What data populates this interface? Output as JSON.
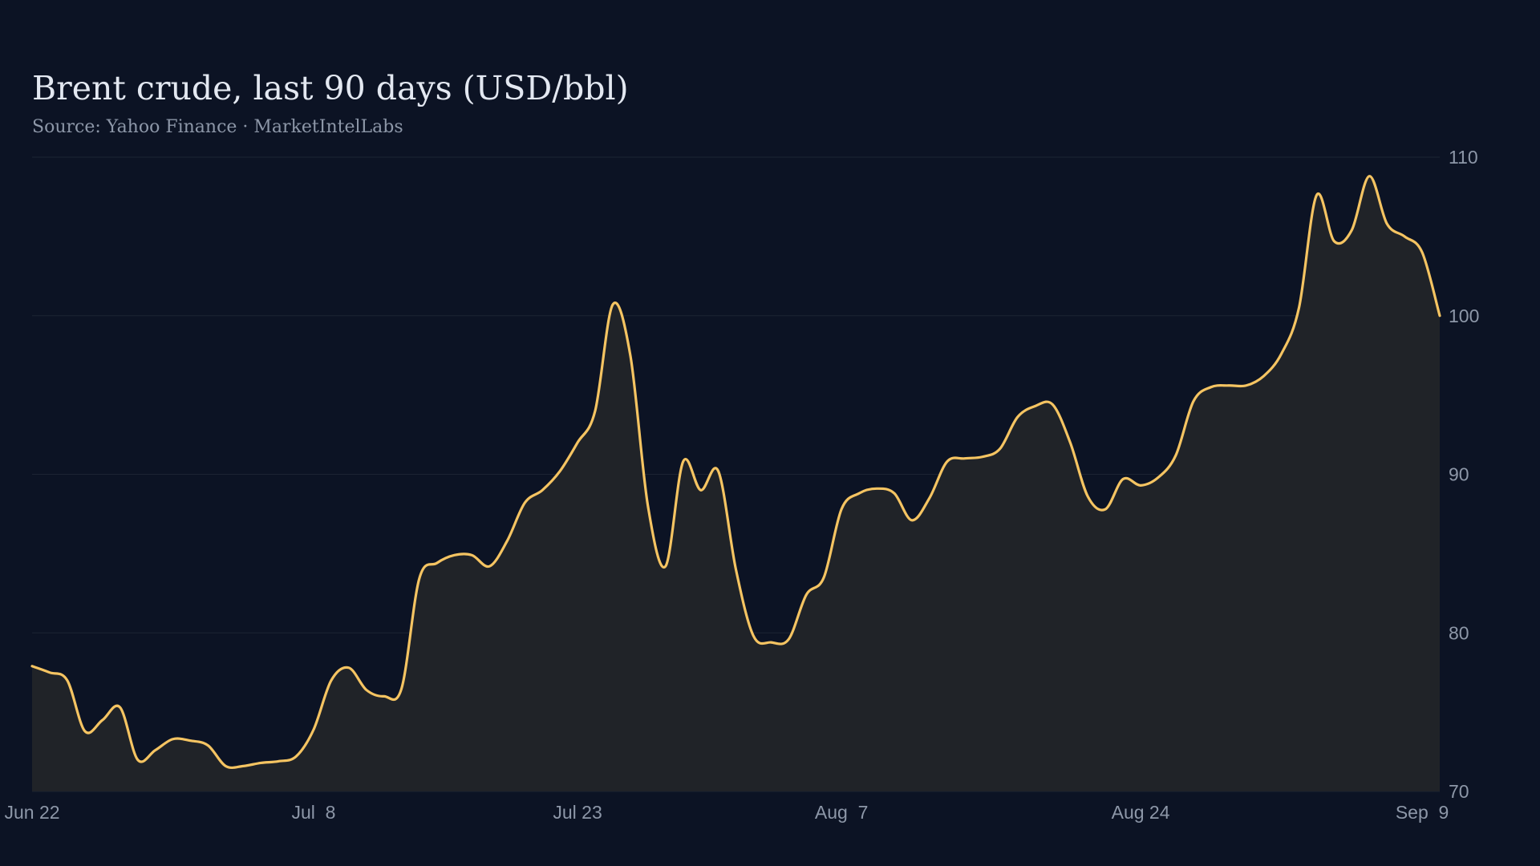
{
  "title": "Brent crude, last 90 days (USD/bbl)",
  "subtitle": "Source: Yahoo Finance · MarketIntelLabs",
  "colors": {
    "background": "#0c1324",
    "line": "#f5c462",
    "area": "#202328",
    "grid": "#1c2433",
    "text": "#8d97a8"
  },
  "chart_data": {
    "type": "area",
    "title": "Brent crude, last 90 days (USD/bbl)",
    "subtitle": "Source: Yahoo Finance · MarketIntelLabs",
    "xlabel": "",
    "ylabel": "",
    "ylim": [
      70,
      110
    ],
    "y_ticks": [
      70,
      80,
      90,
      100,
      110
    ],
    "y_axis_position": "right",
    "grid": true,
    "legend": "none",
    "x_ticks": [
      {
        "date": "2024-06-22",
        "label": "Jun 22"
      },
      {
        "date": "2024-07-08",
        "label": "Jul  8"
      },
      {
        "date": "2024-07-23",
        "label": "Jul 23"
      },
      {
        "date": "2024-08-07",
        "label": "Aug  7"
      },
      {
        "date": "2024-08-24",
        "label": "Aug 24"
      },
      {
        "date": "2024-09-09",
        "label": "Sep  9"
      }
    ],
    "series": [
      {
        "points": [
          [
            "2024-06-22",
            77.9
          ],
          [
            "2024-06-23",
            77.5
          ],
          [
            "2024-06-24",
            77.0
          ],
          [
            "2024-06-25",
            73.8
          ],
          [
            "2024-06-26",
            74.5
          ],
          [
            "2024-06-27",
            75.3
          ],
          [
            "2024-06-28",
            72.0
          ],
          [
            "2024-06-29",
            72.6
          ],
          [
            "2024-06-30",
            73.3
          ],
          [
            "2024-07-01",
            73.2
          ],
          [
            "2024-07-02",
            72.9
          ],
          [
            "2024-07-03",
            71.6
          ],
          [
            "2024-07-04",
            71.6
          ],
          [
            "2024-07-05",
            71.8
          ],
          [
            "2024-07-06",
            71.9
          ],
          [
            "2024-07-07",
            72.2
          ],
          [
            "2024-07-08",
            73.9
          ],
          [
            "2024-07-09",
            77.0
          ],
          [
            "2024-07-10",
            77.8
          ],
          [
            "2024-07-11",
            76.4
          ],
          [
            "2024-07-12",
            76.0
          ],
          [
            "2024-07-13",
            76.5
          ],
          [
            "2024-07-14",
            83.4
          ],
          [
            "2024-07-15",
            84.4
          ],
          [
            "2024-07-16",
            84.9
          ],
          [
            "2024-07-17",
            84.9
          ],
          [
            "2024-07-18",
            84.2
          ],
          [
            "2024-07-19",
            85.8
          ],
          [
            "2024-07-20",
            88.2
          ],
          [
            "2024-07-21",
            89.0
          ],
          [
            "2024-07-22",
            90.2
          ],
          [
            "2024-07-23",
            92.0
          ],
          [
            "2024-07-24",
            94.0
          ],
          [
            "2024-07-25",
            100.7
          ],
          [
            "2024-07-26",
            97.5
          ],
          [
            "2024-07-27",
            88.0
          ],
          [
            "2024-07-28",
            84.2
          ],
          [
            "2024-07-29",
            90.8
          ],
          [
            "2024-07-30",
            89.0
          ],
          [
            "2024-07-31",
            90.2
          ],
          [
            "2024-08-01",
            84.0
          ],
          [
            "2024-08-02",
            79.8
          ],
          [
            "2024-08-03",
            79.4
          ],
          [
            "2024-08-04",
            79.6
          ],
          [
            "2024-08-05",
            82.4
          ],
          [
            "2024-08-06",
            83.5
          ],
          [
            "2024-08-07",
            87.8
          ],
          [
            "2024-08-08",
            88.8
          ],
          [
            "2024-08-09",
            89.1
          ],
          [
            "2024-08-10",
            88.8
          ],
          [
            "2024-08-11",
            87.1
          ],
          [
            "2024-08-12",
            88.5
          ],
          [
            "2024-08-13",
            90.8
          ],
          [
            "2024-08-14",
            91.0
          ],
          [
            "2024-08-15",
            91.1
          ],
          [
            "2024-08-16",
            91.6
          ],
          [
            "2024-08-17",
            93.6
          ],
          [
            "2024-08-18",
            94.3
          ],
          [
            "2024-08-19",
            94.4
          ],
          [
            "2024-08-20",
            92.0
          ],
          [
            "2024-08-21",
            88.6
          ],
          [
            "2024-08-22",
            87.8
          ],
          [
            "2024-08-23",
            89.7
          ],
          [
            "2024-08-24",
            89.3
          ],
          [
            "2024-08-25",
            89.8
          ],
          [
            "2024-08-26",
            91.2
          ],
          [
            "2024-08-27",
            94.6
          ],
          [
            "2024-08-28",
            95.5
          ],
          [
            "2024-08-29",
            95.6
          ],
          [
            "2024-08-30",
            95.6
          ],
          [
            "2024-08-31",
            96.2
          ],
          [
            "2024-09-01",
            97.6
          ],
          [
            "2024-09-02",
            100.5
          ],
          [
            "2024-09-03",
            107.6
          ],
          [
            "2024-09-04",
            104.7
          ],
          [
            "2024-09-05",
            105.4
          ],
          [
            "2024-09-06",
            108.8
          ],
          [
            "2024-09-07",
            105.8
          ],
          [
            "2024-09-08",
            105.0
          ],
          [
            "2024-09-09",
            104.0
          ],
          [
            "2024-09-10",
            100.0
          ]
        ]
      }
    ]
  }
}
